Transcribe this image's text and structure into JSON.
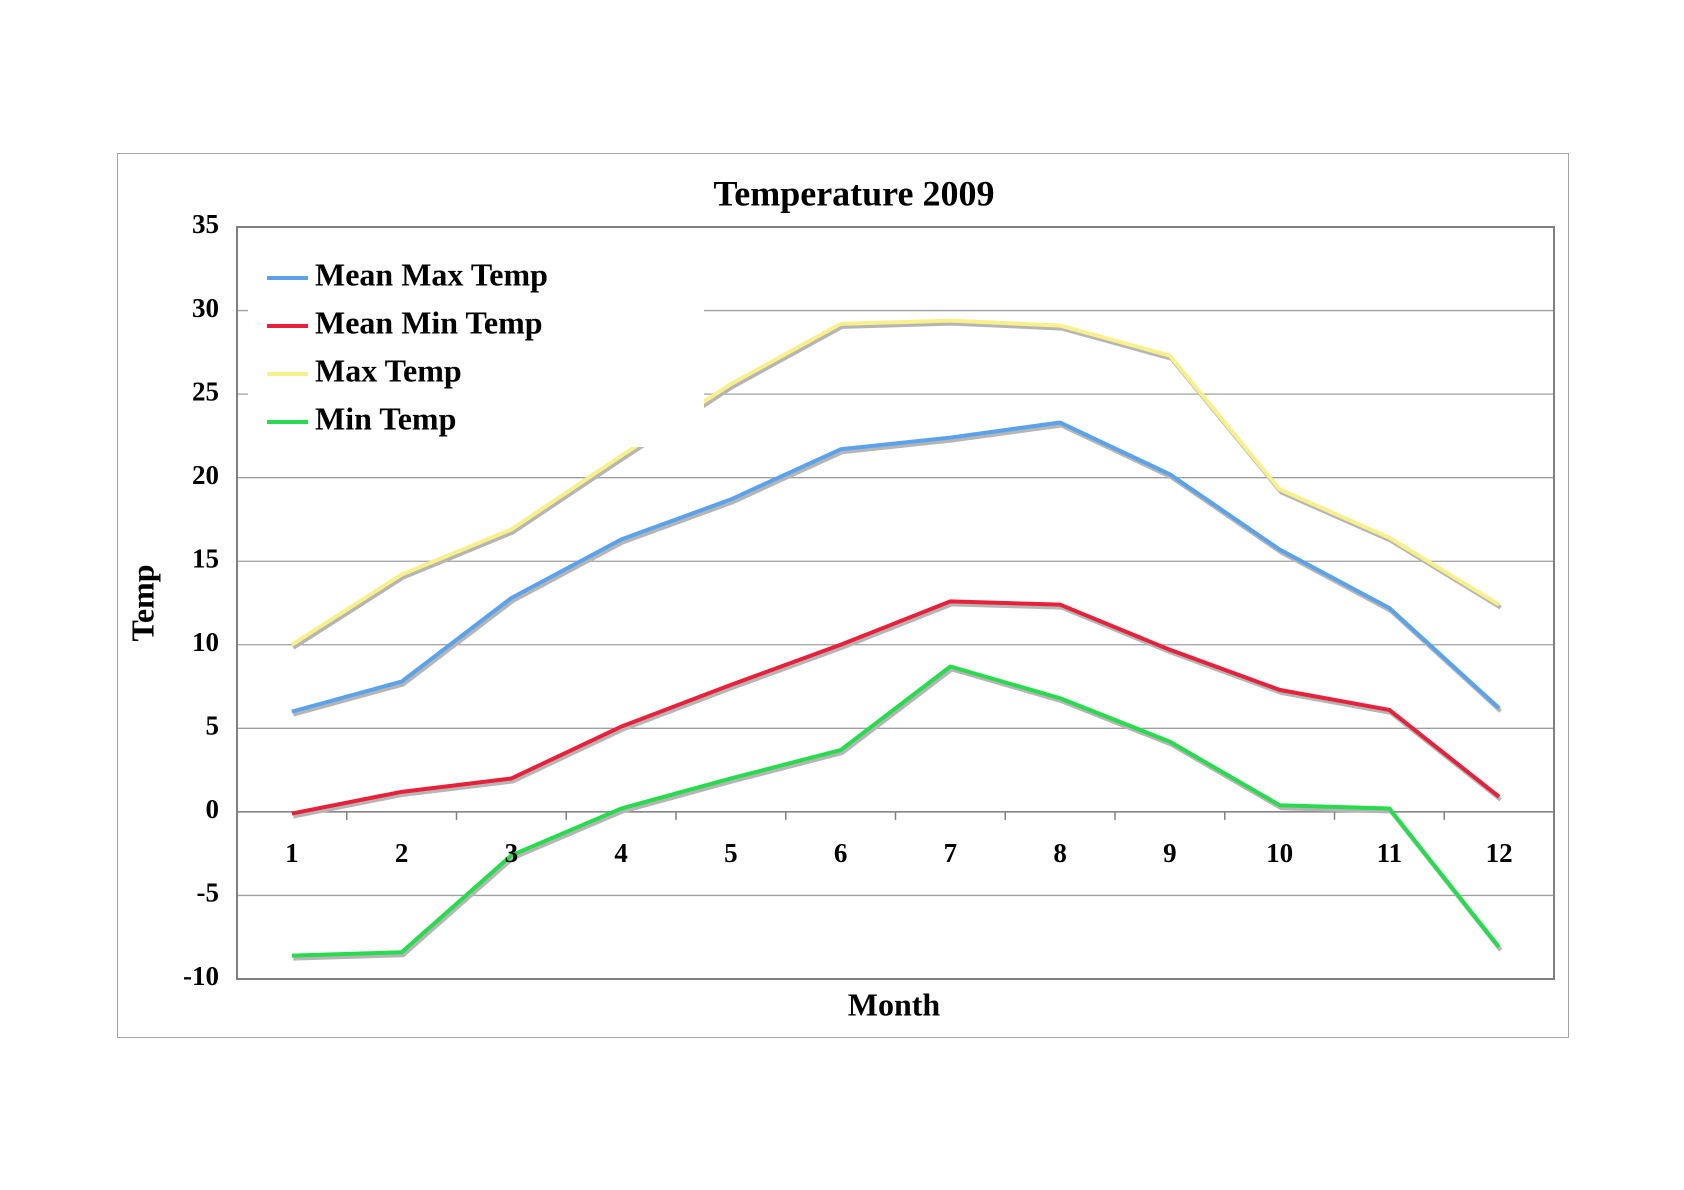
{
  "chart_data": {
    "type": "line",
    "title": "Temperature 2009",
    "xlabel": "Month",
    "ylabel": "Temp",
    "x": [
      1,
      2,
      3,
      4,
      5,
      6,
      7,
      8,
      9,
      10,
      11,
      12
    ],
    "ylim": [
      -10,
      35
    ],
    "yticks": [
      35,
      30,
      25,
      20,
      15,
      10,
      5,
      0,
      -5,
      -10
    ],
    "grid": true,
    "legend_position": "top-left",
    "series": [
      {
        "name": "Mean Max Temp",
        "color": "#5aa3ec",
        "values": [
          6.0,
          7.8,
          12.8,
          16.3,
          18.7,
          21.7,
          22.4,
          23.3,
          20.2,
          15.7,
          12.2,
          6.2
        ]
      },
      {
        "name": "Mean Min Temp",
        "color": "#e8203a",
        "values": [
          -0.1,
          1.2,
          2.0,
          5.1,
          7.6,
          10.0,
          12.6,
          12.4,
          9.7,
          7.3,
          6.1,
          0.9
        ]
      },
      {
        "name": "Max Temp",
        "color": "#f8f08a",
        "values": [
          10.0,
          14.2,
          16.9,
          21.3,
          25.6,
          29.2,
          29.4,
          29.1,
          27.3,
          19.3,
          16.4,
          12.4
        ]
      },
      {
        "name": "Min Temp",
        "color": "#26dc4c",
        "values": [
          -8.6,
          -8.4,
          -2.6,
          0.2,
          2.0,
          3.7,
          8.7,
          6.8,
          4.2,
          0.4,
          0.2,
          -8.1
        ]
      }
    ]
  }
}
